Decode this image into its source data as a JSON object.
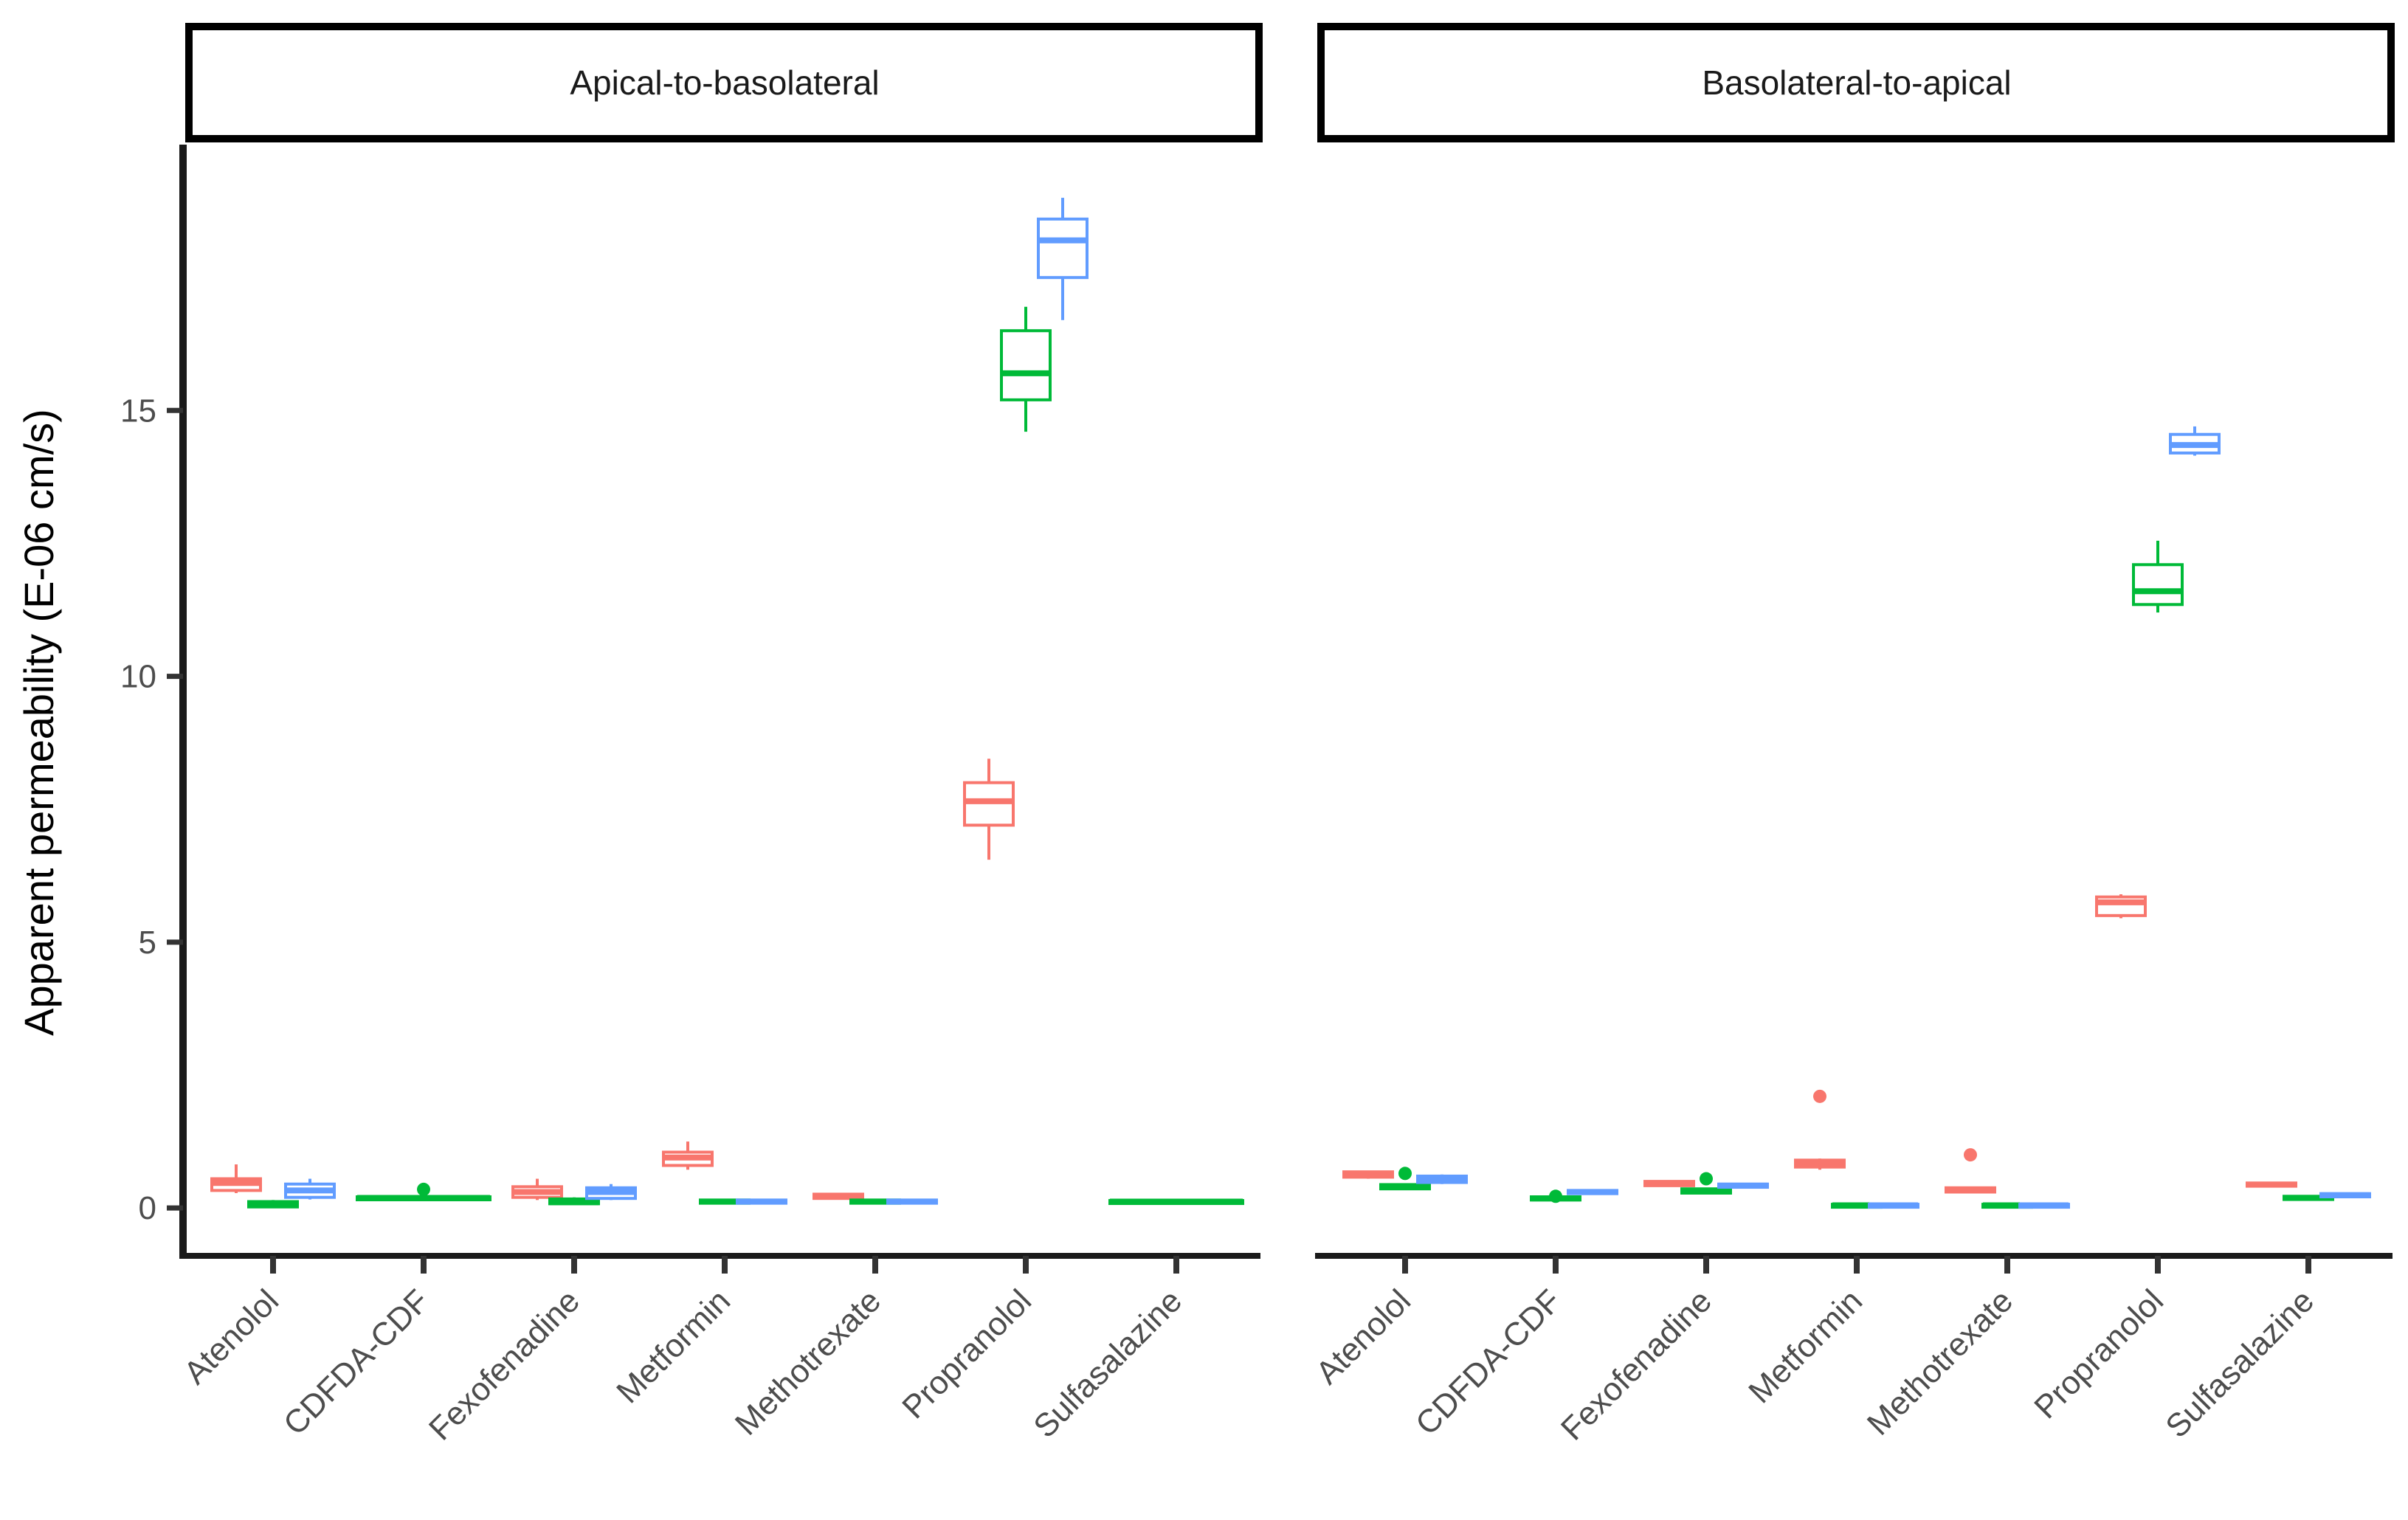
{
  "chart_data": {
    "type": "boxplot",
    "ylabel": "Apparent permeability (E-06 cm/s)",
    "xlabel": "",
    "ylim": [
      -0.9,
      20.0
    ],
    "yticks": [
      0,
      5,
      10,
      15
    ],
    "categories": [
      "Atenolol",
      "CDFDA-CDF",
      "Fexofenadine",
      "Metformin",
      "Methotrexate",
      "Propranolol",
      "Sulfasalazine"
    ],
    "series_colors": [
      "#F8766D",
      "#00BA38",
      "#619CFF"
    ],
    "panels": [
      {
        "strip": "Apical-to-basolateral",
        "groups": [
          {
            "category": "Atenolol",
            "boxes": [
              {
                "color": "#F8766D",
                "lo": 0.28,
                "q1": 0.33,
                "median": 0.47,
                "q3": 0.55,
                "hi": 0.82
              },
              {
                "color": "#00BA38",
                "lo": 0.0,
                "q1": 0.02,
                "median": 0.06,
                "q3": 0.12,
                "hi": 0.15
              },
              {
                "color": "#619CFF",
                "lo": 0.16,
                "q1": 0.2,
                "median": 0.33,
                "q3": 0.45,
                "hi": 0.55
              }
            ]
          },
          {
            "category": "CDFDA-CDF",
            "boxes": [
              {
                "color": "#00BA38",
                "lo": 0.15,
                "q1": 0.17,
                "median": 0.19,
                "q3": 0.21,
                "hi": 0.23,
                "outliers": [
                  0.35
                ]
              }
            ]
          },
          {
            "category": "Fexofenadine",
            "boxes": [
              {
                "color": "#F8766D",
                "lo": 0.15,
                "q1": 0.2,
                "median": 0.3,
                "q3": 0.4,
                "hi": 0.55
              },
              {
                "color": "#00BA38",
                "lo": 0.06,
                "q1": 0.08,
                "median": 0.11,
                "q3": 0.17,
                "hi": 0.2
              },
              {
                "color": "#619CFF",
                "lo": 0.15,
                "q1": 0.18,
                "median": 0.3,
                "q3": 0.38,
                "hi": 0.45
              }
            ]
          },
          {
            "category": "Metformin",
            "boxes": [
              {
                "color": "#F8766D",
                "lo": 0.72,
                "q1": 0.8,
                "median": 0.95,
                "q3": 1.05,
                "hi": 1.25
              },
              {
                "color": "#00BA38",
                "lo": 0.07,
                "q1": 0.09,
                "median": 0.12,
                "q3": 0.15,
                "hi": 0.17
              },
              {
                "color": "#619CFF",
                "lo": 0.07,
                "q1": 0.09,
                "median": 0.12,
                "q3": 0.15,
                "hi": 0.17
              }
            ]
          },
          {
            "category": "Methotrexate",
            "boxes": [
              {
                "color": "#F8766D",
                "lo": 0.16,
                "q1": 0.18,
                "median": 0.22,
                "q3": 0.26,
                "hi": 0.28
              },
              {
                "color": "#00BA38",
                "lo": 0.07,
                "q1": 0.09,
                "median": 0.12,
                "q3": 0.15,
                "hi": 0.17
              },
              {
                "color": "#619CFF",
                "lo": 0.07,
                "q1": 0.09,
                "median": 0.12,
                "q3": 0.15,
                "hi": 0.17
              }
            ]
          },
          {
            "category": "Propranolol",
            "boxes": [
              {
                "color": "#F8766D",
                "lo": 6.55,
                "q1": 7.2,
                "median": 7.65,
                "q3": 8.0,
                "hi": 8.45
              },
              {
                "color": "#00BA38",
                "lo": 14.6,
                "q1": 15.2,
                "median": 15.7,
                "q3": 16.5,
                "hi": 16.95
              },
              {
                "color": "#619CFF",
                "lo": 16.7,
                "q1": 17.5,
                "median": 18.2,
                "q3": 18.6,
                "hi": 19.0
              }
            ]
          },
          {
            "category": "Sulfasalazine",
            "boxes": [
              {
                "color": "#00BA38",
                "lo": 0.09,
                "q1": 0.1,
                "median": 0.12,
                "q3": 0.14,
                "hi": 0.15
              }
            ]
          }
        ]
      },
      {
        "strip": "Basolateral-to-apical",
        "groups": [
          {
            "category": "Atenolol",
            "boxes": [
              {
                "color": "#F8766D",
                "lo": 0.55,
                "q1": 0.58,
                "median": 0.63,
                "q3": 0.68,
                "hi": 0.7
              },
              {
                "color": "#00BA38",
                "lo": 0.34,
                "q1": 0.36,
                "median": 0.4,
                "q3": 0.44,
                "hi": 0.46,
                "outliers": [
                  0.65
                ]
              },
              {
                "color": "#619CFF",
                "lo": 0.45,
                "q1": 0.48,
                "median": 0.55,
                "q3": 0.6,
                "hi": 0.63
              }
            ]
          },
          {
            "category": "CDFDA-CDF",
            "boxes": [
              {
                "color": "#00BA38",
                "lo": 0.13,
                "q1": 0.15,
                "median": 0.18,
                "q3": 0.21,
                "hi": 0.23,
                "outliers": [
                  0.22
                ]
              },
              {
                "color": "#619CFF",
                "lo": 0.26,
                "q1": 0.27,
                "median": 0.3,
                "q3": 0.33,
                "hi": 0.34
              }
            ]
          },
          {
            "category": "Fexofenadine",
            "boxes": [
              {
                "color": "#F8766D",
                "lo": 0.4,
                "q1": 0.42,
                "median": 0.46,
                "q3": 0.5,
                "hi": 0.52
              },
              {
                "color": "#00BA38",
                "lo": 0.26,
                "q1": 0.28,
                "median": 0.32,
                "q3": 0.36,
                "hi": 0.38,
                "outliers": [
                  0.55
                ]
              },
              {
                "color": "#619CFF",
                "lo": 0.37,
                "q1": 0.39,
                "median": 0.42,
                "q3": 0.45,
                "hi": 0.47
              }
            ]
          },
          {
            "category": "Metformin",
            "boxes": [
              {
                "color": "#F8766D",
                "lo": 0.72,
                "q1": 0.77,
                "median": 0.83,
                "q3": 0.9,
                "hi": 0.93,
                "outliers": [
                  2.1
                ]
              },
              {
                "color": "#00BA38",
                "lo": 0.02,
                "q1": 0.03,
                "median": 0.05,
                "q3": 0.07,
                "hi": 0.08
              },
              {
                "color": "#619CFF",
                "lo": 0.02,
                "q1": 0.03,
                "median": 0.05,
                "q3": 0.07,
                "hi": 0.08
              }
            ]
          },
          {
            "category": "Methotrexate",
            "boxes": [
              {
                "color": "#F8766D",
                "lo": 0.28,
                "q1": 0.3,
                "median": 0.34,
                "q3": 0.38,
                "hi": 0.4,
                "outliers": [
                  1.0
                ]
              },
              {
                "color": "#00BA38",
                "lo": 0.02,
                "q1": 0.03,
                "median": 0.05,
                "q3": 0.07,
                "hi": 0.08
              },
              {
                "color": "#619CFF",
                "lo": 0.02,
                "q1": 0.03,
                "median": 0.05,
                "q3": 0.07,
                "hi": 0.08
              }
            ]
          },
          {
            "category": "Propranolol",
            "boxes": [
              {
                "color": "#F8766D",
                "lo": 5.45,
                "q1": 5.5,
                "median": 5.75,
                "q3": 5.85,
                "hi": 5.9
              },
              {
                "color": "#00BA38",
                "lo": 11.2,
                "q1": 11.35,
                "median": 11.6,
                "q3": 12.1,
                "hi": 12.55
              },
              {
                "color": "#619CFF",
                "lo": 14.15,
                "q1": 14.2,
                "median": 14.35,
                "q3": 14.55,
                "hi": 14.7
              }
            ]
          },
          {
            "category": "Sulfasalazine",
            "boxes": [
              {
                "color": "#F8766D",
                "lo": 0.4,
                "q1": 0.41,
                "median": 0.44,
                "q3": 0.47,
                "hi": 0.48
              },
              {
                "color": "#00BA38",
                "lo": 0.15,
                "q1": 0.16,
                "median": 0.19,
                "q3": 0.22,
                "hi": 0.23
              },
              {
                "color": "#619CFF",
                "lo": 0.2,
                "q1": 0.21,
                "median": 0.24,
                "q3": 0.27,
                "hi": 0.28
              }
            ]
          }
        ]
      }
    ]
  }
}
